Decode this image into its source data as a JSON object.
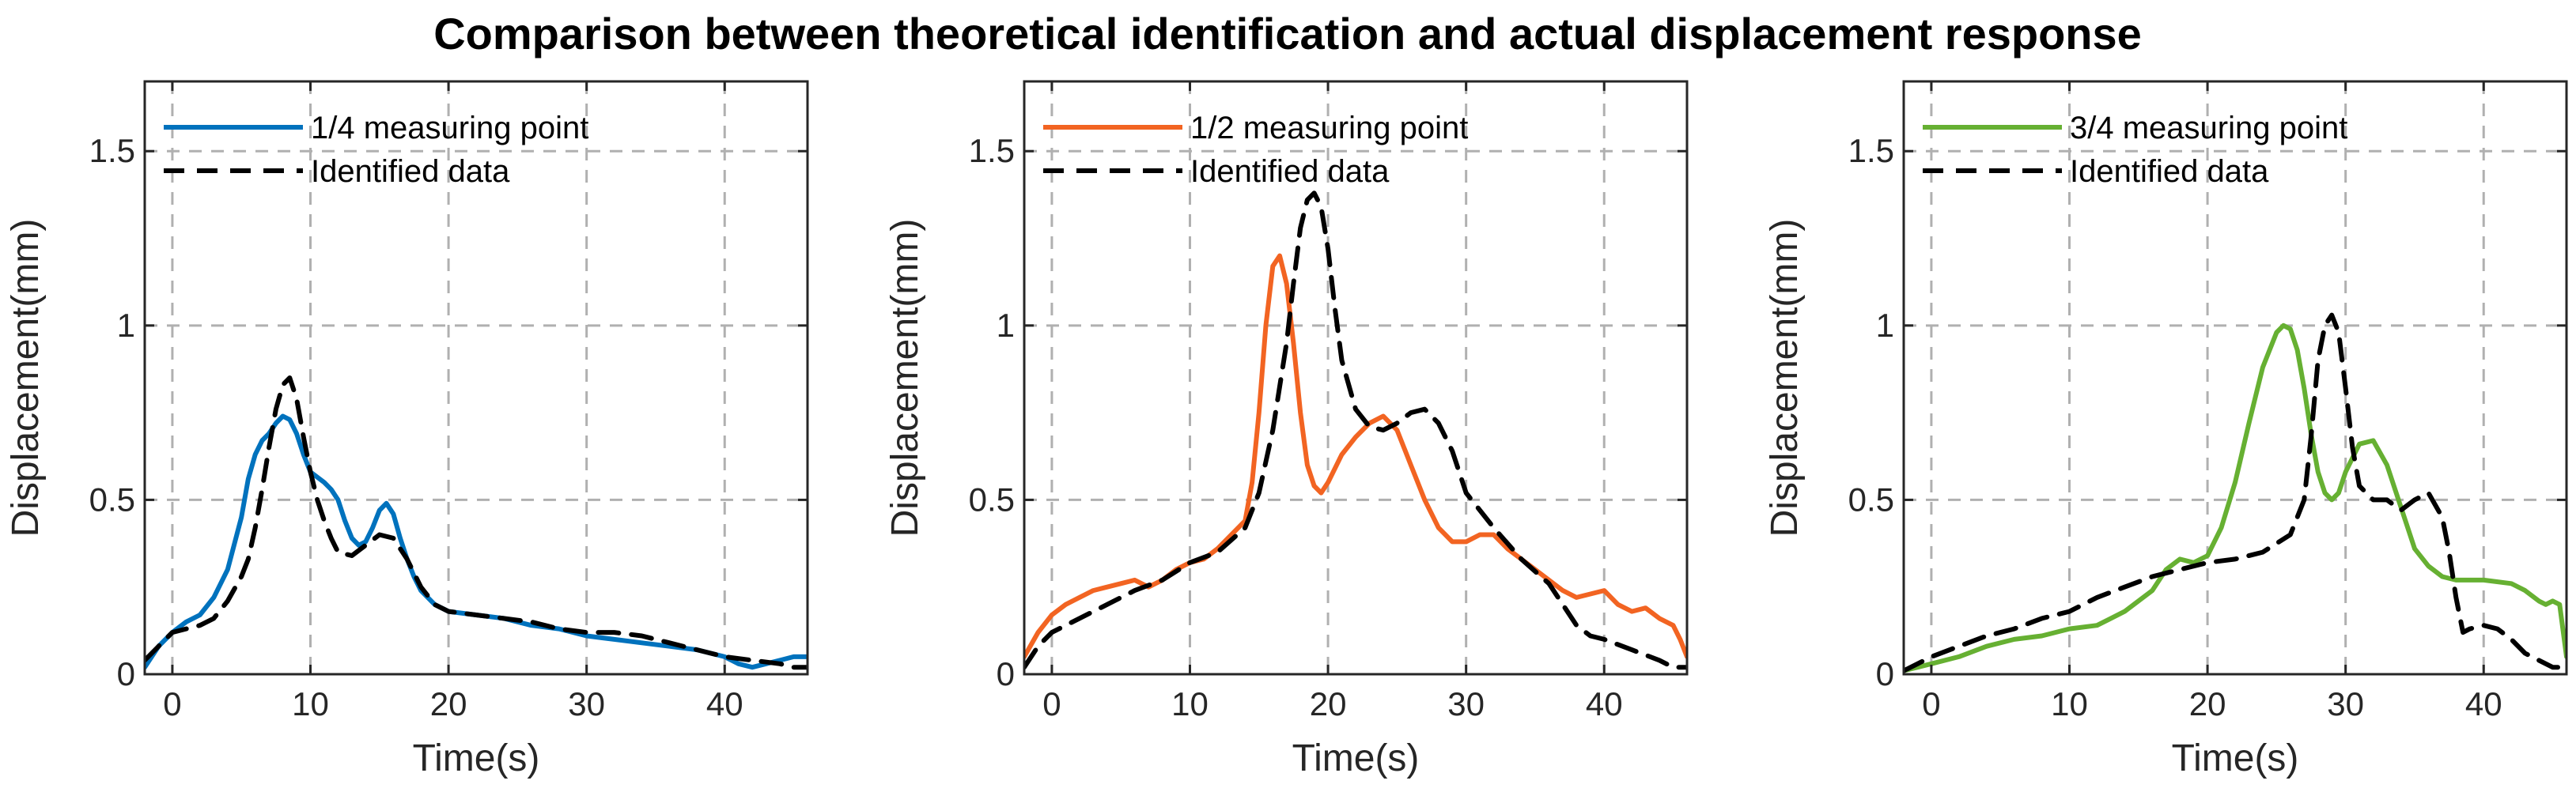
{
  "chart_data": {
    "title": "Comparison between theoretical identification and actual displacement response",
    "colors": {
      "quarter": "#0072BD",
      "half": "#F26422",
      "three_quarter": "#66B032",
      "identified": "#000000"
    },
    "panels": [
      {
        "type": "line",
        "xlabel": "Time(s)",
        "ylabel": "Displacement(mm)",
        "xlim": [
          -2,
          46
        ],
        "ylim": [
          0,
          1.7
        ],
        "xticks": [
          0,
          10,
          20,
          30,
          40
        ],
        "xtick_labels": [
          "0",
          "10",
          "20",
          "30",
          "40"
        ],
        "yticks": [
          0,
          0.5,
          1,
          1.5
        ],
        "ytick_labels": [
          "0",
          "0.5",
          "1",
          "1.5"
        ],
        "grid": true,
        "legend_location": "top-left",
        "series": [
          {
            "name": "1/4 measuring point",
            "style": "solid",
            "color_key": "quarter",
            "x": [
              -2,
              -1,
              0,
              1,
              2,
              3,
              4,
              5,
              5.5,
              6,
              6.5,
              7,
              7.5,
              8,
              8.5,
              9,
              9.5,
              10,
              11,
              11.5,
              12,
              12.5,
              13,
              13.5,
              14,
              14.5,
              15,
              15.5,
              16,
              16.5,
              17,
              17.5,
              18,
              19,
              20,
              22,
              24,
              26,
              28,
              30,
              32,
              34,
              36,
              38,
              40,
              41,
              42,
              43,
              44,
              45,
              46
            ],
            "y": [
              0.02,
              0.08,
              0.12,
              0.15,
              0.17,
              0.22,
              0.3,
              0.45,
              0.56,
              0.63,
              0.67,
              0.69,
              0.72,
              0.74,
              0.73,
              0.69,
              0.63,
              0.58,
              0.55,
              0.53,
              0.5,
              0.44,
              0.39,
              0.37,
              0.38,
              0.42,
              0.47,
              0.49,
              0.46,
              0.39,
              0.33,
              0.28,
              0.24,
              0.2,
              0.18,
              0.17,
              0.16,
              0.14,
              0.13,
              0.11,
              0.1,
              0.09,
              0.08,
              0.07,
              0.05,
              0.03,
              0.02,
              0.03,
              0.04,
              0.05,
              0.05
            ]
          },
          {
            "name": "Identified data",
            "style": "dashed",
            "color_key": "identified",
            "x": [
              -2,
              -1,
              0,
              1,
              2,
              3,
              4,
              5,
              5.5,
              6,
              6.5,
              7,
              7.5,
              8,
              8.5,
              9,
              9.5,
              10,
              10.5,
              11,
              11.5,
              12,
              13,
              14,
              15,
              16,
              17,
              18,
              19,
              20,
              22,
              24,
              26,
              28,
              30,
              32,
              34,
              36,
              38,
              40,
              42,
              44,
              45,
              46
            ],
            "y": [
              0.04,
              0.08,
              0.12,
              0.13,
              0.14,
              0.16,
              0.21,
              0.28,
              0.33,
              0.42,
              0.53,
              0.65,
              0.76,
              0.83,
              0.85,
              0.79,
              0.68,
              0.58,
              0.5,
              0.44,
              0.39,
              0.35,
              0.34,
              0.37,
              0.4,
              0.39,
              0.33,
              0.25,
              0.2,
              0.18,
              0.17,
              0.16,
              0.15,
              0.13,
              0.12,
              0.12,
              0.11,
              0.09,
              0.07,
              0.05,
              0.04,
              0.03,
              0.02,
              0.02
            ]
          }
        ]
      },
      {
        "type": "line",
        "xlabel": "Time(s)",
        "ylabel": "Displacement(mm)",
        "xlim": [
          -2,
          46
        ],
        "ylim": [
          0,
          1.7
        ],
        "xticks": [
          0,
          10,
          20,
          30,
          40
        ],
        "xtick_labels": [
          "0",
          "10",
          "20",
          "30",
          "40"
        ],
        "yticks": [
          0,
          0.5,
          1,
          1.5
        ],
        "ytick_labels": [
          "0",
          "0.5",
          "1",
          "1.5"
        ],
        "grid": true,
        "legend_location": "top-left",
        "series": [
          {
            "name": "1/2 measuring point",
            "style": "solid",
            "color_key": "half",
            "x": [
              -2,
              -1,
              0,
              1,
              2,
              3,
              4,
              5,
              6,
              7,
              8,
              9,
              10,
              11,
              12,
              13,
              14,
              14.5,
              15,
              15.5,
              16,
              16.5,
              17,
              17.5,
              18,
              18.5,
              19,
              19.5,
              20,
              21,
              22,
              23,
              24,
              25,
              26,
              27,
              28,
              29,
              30,
              31,
              32,
              33,
              34,
              35,
              36,
              37,
              38,
              39,
              40,
              41,
              42,
              43,
              44,
              45,
              45.5,
              46
            ],
            "y": [
              0.05,
              0.12,
              0.17,
              0.2,
              0.22,
              0.24,
              0.25,
              0.26,
              0.27,
              0.25,
              0.27,
              0.3,
              0.32,
              0.33,
              0.36,
              0.4,
              0.44,
              0.55,
              0.75,
              1.0,
              1.17,
              1.2,
              1.12,
              0.95,
              0.75,
              0.6,
              0.54,
              0.52,
              0.55,
              0.63,
              0.68,
              0.72,
              0.74,
              0.7,
              0.6,
              0.5,
              0.42,
              0.38,
              0.38,
              0.4,
              0.4,
              0.36,
              0.33,
              0.3,
              0.27,
              0.24,
              0.22,
              0.23,
              0.24,
              0.2,
              0.18,
              0.19,
              0.16,
              0.14,
              0.1,
              0.05
            ]
          },
          {
            "name": "Identified data",
            "style": "dashed",
            "color_key": "identified",
            "x": [
              -2,
              -1,
              0,
              2,
              4,
              6,
              8,
              10,
              12,
              14,
              15,
              16,
              17,
              17.5,
              18,
              18.5,
              19,
              19.5,
              20,
              20.5,
              21,
              22,
              23,
              24,
              25,
              26,
              27,
              28,
              29,
              30,
              32,
              34,
              36,
              37,
              38,
              39,
              40,
              42,
              44,
              45,
              46
            ],
            "y": [
              0.02,
              0.08,
              0.12,
              0.16,
              0.2,
              0.24,
              0.27,
              0.32,
              0.35,
              0.42,
              0.52,
              0.7,
              0.95,
              1.12,
              1.28,
              1.36,
              1.38,
              1.34,
              1.22,
              1.05,
              0.9,
              0.76,
              0.71,
              0.7,
              0.72,
              0.75,
              0.76,
              0.72,
              0.64,
              0.52,
              0.42,
              0.33,
              0.26,
              0.2,
              0.14,
              0.11,
              0.1,
              0.07,
              0.04,
              0.02,
              0.02
            ]
          }
        ]
      },
      {
        "type": "line",
        "xlabel": "Time(s)",
        "ylabel": "Displacement(mm)",
        "xlim": [
          -2,
          46
        ],
        "ylim": [
          0,
          1.7
        ],
        "xticks": [
          0,
          10,
          20,
          30,
          40
        ],
        "xtick_labels": [
          "0",
          "10",
          "20",
          "30",
          "40"
        ],
        "yticks": [
          0,
          0.5,
          1,
          1.5
        ],
        "ytick_labels": [
          "0",
          "0.5",
          "1",
          "1.5"
        ],
        "grid": true,
        "legend_location": "top-left",
        "series": [
          {
            "name": "3/4 measuring point",
            "style": "solid",
            "color_key": "three_quarter",
            "x": [
              -2,
              -1,
              0,
              2,
              4,
              6,
              8,
              10,
              12,
              14,
              16,
              17,
              18,
              19,
              20,
              21,
              22,
              23,
              24,
              25,
              25.5,
              26,
              26.5,
              27,
              27.5,
              28,
              28.5,
              29,
              29.5,
              30,
              31,
              32,
              33,
              34,
              35,
              36,
              37,
              38,
              40,
              42,
              43,
              44,
              44.5,
              45,
              45.5,
              46
            ],
            "y": [
              0.01,
              0.02,
              0.03,
              0.05,
              0.08,
              0.1,
              0.11,
              0.13,
              0.14,
              0.18,
              0.24,
              0.3,
              0.33,
              0.32,
              0.34,
              0.42,
              0.55,
              0.72,
              0.88,
              0.98,
              1.0,
              0.99,
              0.93,
              0.82,
              0.69,
              0.58,
              0.52,
              0.5,
              0.52,
              0.58,
              0.66,
              0.67,
              0.6,
              0.48,
              0.36,
              0.31,
              0.28,
              0.27,
              0.27,
              0.26,
              0.24,
              0.21,
              0.2,
              0.21,
              0.2,
              0.05
            ]
          },
          {
            "name": "Identified data",
            "style": "dashed",
            "color_key": "identified",
            "x": [
              -2,
              -1,
              0,
              2,
              4,
              6,
              8,
              10,
              12,
              14,
              16,
              18,
              20,
              22,
              24,
              26,
              27,
              27.5,
              28,
              28.5,
              29,
              29.5,
              30,
              30.5,
              31,
              32,
              33,
              34,
              35,
              36,
              37,
              37.5,
              38,
              38.5,
              39,
              40,
              41,
              42,
              43,
              44,
              45,
              46
            ],
            "y": [
              0.01,
              0.03,
              0.05,
              0.08,
              0.11,
              0.13,
              0.16,
              0.18,
              0.22,
              0.25,
              0.28,
              0.3,
              0.32,
              0.33,
              0.35,
              0.4,
              0.5,
              0.68,
              0.9,
              1.0,
              1.03,
              0.98,
              0.82,
              0.65,
              0.54,
              0.5,
              0.5,
              0.47,
              0.5,
              0.52,
              0.45,
              0.35,
              0.22,
              0.12,
              0.13,
              0.14,
              0.13,
              0.1,
              0.06,
              0.04,
              0.02,
              0.02
            ]
          }
        ]
      }
    ]
  }
}
